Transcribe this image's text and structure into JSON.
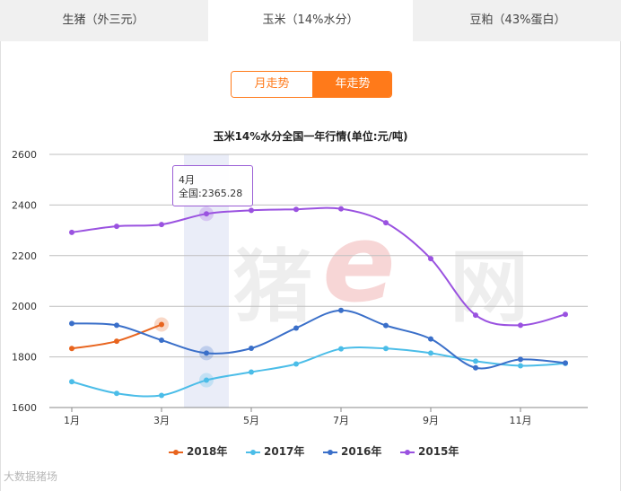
{
  "tabs": [
    {
      "label": "生猪（外三元）"
    },
    {
      "label": "玉米（14%水分）"
    },
    {
      "label": "豆粕（43%蛋白）"
    }
  ],
  "toggle": {
    "month_label": "月走势",
    "year_label": "年走势"
  },
  "tooltip": {
    "month": "4月",
    "value_text": "全国:2365.28"
  },
  "watermark": {
    "brand_text": "猪网",
    "footer_text": "大数据猪场"
  },
  "chart_data": {
    "type": "line",
    "title": "玉米14%水分全国一年行情(单位:元/吨)",
    "x": [
      1,
      2,
      3,
      4,
      5,
      6,
      7,
      8,
      9,
      10,
      11,
      12
    ],
    "x_tick_labels": [
      "1月",
      "3月",
      "5月",
      "7月",
      "9月",
      "11月"
    ],
    "x_tick_values": [
      1,
      3,
      5,
      7,
      9,
      11
    ],
    "ylim": [
      1600,
      2600
    ],
    "y_ticks": [
      1600,
      1800,
      2000,
      2200,
      2400,
      2600
    ],
    "y_tick_labels": [
      "1600",
      "1800",
      "2000",
      "2200",
      "2400",
      "2600"
    ],
    "highlight_month": 4,
    "grid": true,
    "legend_position": "bottom",
    "series": [
      {
        "name": "2018年",
        "color": "#e8641e",
        "values": [
          1833,
          1862,
          1928,
          null,
          null,
          null,
          null,
          null,
          null,
          null,
          null,
          null
        ]
      },
      {
        "name": "2017年",
        "color": "#4bbde8",
        "values": [
          1702,
          1656,
          1648,
          1708,
          1740,
          1772,
          1832,
          1833,
          1815,
          1783,
          1765,
          1774
        ]
      },
      {
        "name": "2016年",
        "color": "#3a6fc9",
        "values": [
          1932,
          1925,
          1866,
          1815,
          1834,
          1914,
          1984,
          1924,
          1871,
          1757,
          1790,
          1776
        ]
      },
      {
        "name": "2015年",
        "color": "#9a52e0",
        "values": [
          2292,
          2316,
          2323,
          2365.28,
          2379,
          2383,
          2385,
          2330,
          2188,
          1965,
          1925,
          1968
        ]
      }
    ]
  }
}
